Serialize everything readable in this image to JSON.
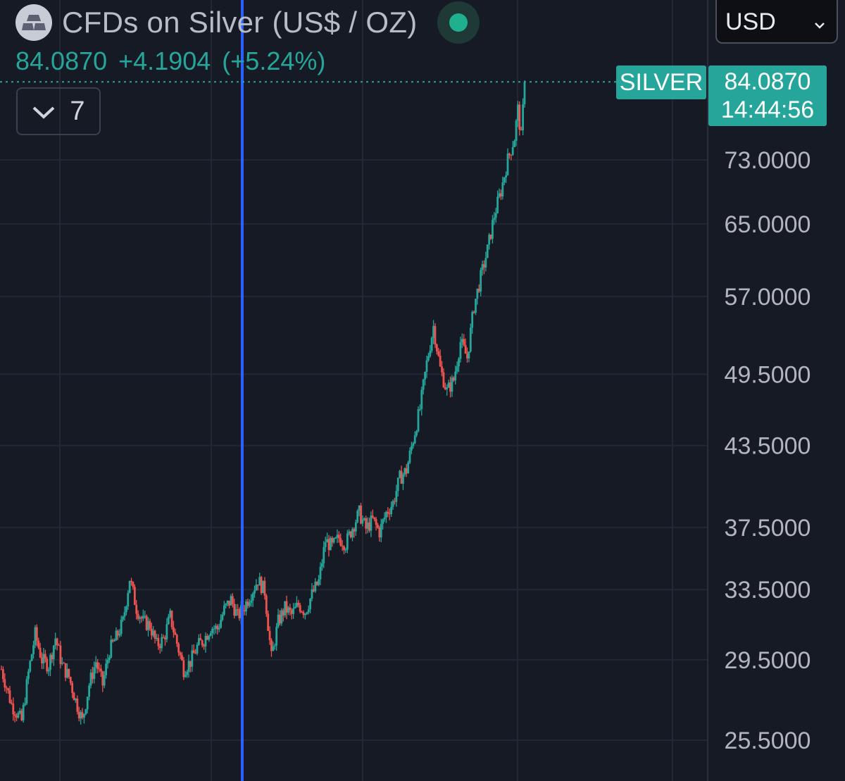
{
  "header": {
    "title": "CFDs on Silver (US$ / OZ)",
    "last_price": "84.0870",
    "change": "+4.1904",
    "change_pct": "(+5.24%)",
    "status_icon": "live-status-dot",
    "logo_icon": "silver-bars-icon"
  },
  "controls": {
    "indicator_count": "7",
    "currency": "USD"
  },
  "price_scale": {
    "symbol_label": "SILVER",
    "last_price_label": "84.0870",
    "countdown": "14:44:56"
  },
  "colors": {
    "background": "#161a25",
    "up": "#26a69a",
    "down": "#ef5350",
    "accent_line": "#2962ff",
    "grid": "#232734"
  },
  "chart_data": {
    "type": "candlestick",
    "title": "CFDs on Silver (US$ / OZ)",
    "y_scale": "log",
    "y_ticks": [
      25.5,
      29.5,
      33.5,
      37.5,
      43.5,
      49.5,
      57.0,
      65.0,
      73.0
    ],
    "y_tick_labels": [
      "25.5000",
      "29.5000",
      "33.5000",
      "37.5000",
      "43.5000",
      "49.5000",
      "57.0000",
      "65.0000",
      "73.0000"
    ],
    "ylim": [
      23.5,
      87.0
    ],
    "last_price": 84.087,
    "grid": true,
    "vertical_marker": true,
    "close_path": [
      [
        0,
        29.0
      ],
      [
        3,
        27.2
      ],
      [
        6,
        26.4
      ],
      [
        8,
        28.8
      ],
      [
        10,
        30.9
      ],
      [
        12,
        29.5
      ],
      [
        14,
        29.2
      ],
      [
        16,
        30.7
      ],
      [
        18,
        29.2
      ],
      [
        20,
        28.6
      ],
      [
        22,
        27.4
      ],
      [
        24,
        26.4
      ],
      [
        26,
        28.2
      ],
      [
        28,
        29.4
      ],
      [
        30,
        28.2
      ],
      [
        32,
        30.0
      ],
      [
        34,
        30.7
      ],
      [
        36,
        31.6
      ],
      [
        38,
        34.2
      ],
      [
        40,
        32.4
      ],
      [
        42,
        31.6
      ],
      [
        44,
        31.4
      ],
      [
        46,
        30.3
      ],
      [
        48,
        30.6
      ],
      [
        50,
        31.9
      ],
      [
        52,
        30.4
      ],
      [
        54,
        29.0
      ],
      [
        56,
        29.4
      ],
      [
        58,
        30.2
      ],
      [
        60,
        30.6
      ],
      [
        62,
        31.3
      ],
      [
        64,
        31.2
      ],
      [
        66,
        32.3
      ],
      [
        68,
        32.9
      ],
      [
        70,
        31.9
      ],
      [
        72,
        32.5
      ],
      [
        74,
        33.3
      ],
      [
        76,
        34.1
      ],
      [
        78,
        33.4
      ],
      [
        80,
        29.6
      ],
      [
        82,
        31.6
      ],
      [
        84,
        32.4
      ],
      [
        86,
        32.0
      ],
      [
        88,
        32.6
      ],
      [
        90,
        32.2
      ],
      [
        92,
        33.2
      ],
      [
        94,
        34.0
      ],
      [
        96,
        36.6
      ],
      [
        98,
        36.2
      ],
      [
        100,
        36.8
      ],
      [
        102,
        36.4
      ],
      [
        104,
        37.5
      ],
      [
        106,
        38.5
      ],
      [
        108,
        37.4
      ],
      [
        110,
        38.0
      ],
      [
        112,
        37.2
      ],
      [
        114,
        38.5
      ],
      [
        116,
        39.2
      ],
      [
        118,
        41.0
      ],
      [
        120,
        41.6
      ],
      [
        122,
        44.0
      ],
      [
        124,
        46.5
      ],
      [
        126,
        50.5
      ],
      [
        128,
        54.0
      ],
      [
        130,
        50.0
      ],
      [
        132,
        48.0
      ],
      [
        134,
        49.0
      ],
      [
        136,
        52.5
      ],
      [
        138,
        51.0
      ],
      [
        140,
        56.0
      ],
      [
        142,
        59.0
      ],
      [
        144,
        62.0
      ],
      [
        146,
        66.0
      ],
      [
        148,
        69.0
      ],
      [
        150,
        73.0
      ],
      [
        152,
        76.0
      ],
      [
        153,
        80.0
      ],
      [
        154,
        76.0
      ],
      [
        155,
        84.087
      ]
    ]
  }
}
